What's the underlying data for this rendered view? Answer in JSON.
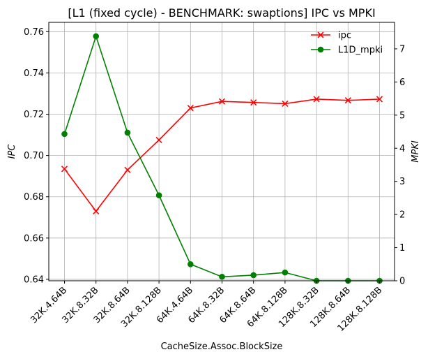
{
  "chart_data": {
    "type": "line",
    "title": "[L1 (fixed cycle) - BENCHMARK: swaptions]  IPC vs MPKI",
    "xlabel": "CacheSize.Assoc.BlockSize",
    "ylabel_left": "IPC",
    "ylabel_right": "MPKI",
    "categories": [
      "32K.4.64B",
      "32K.8.32B",
      "32K.8.64B",
      "32K.8.128B",
      "64K.4.64B",
      "64K.8.32B",
      "64K.8.64B",
      "64K.8.128B",
      "128K.8.32B",
      "128K.8.64B",
      "128K.8.128B"
    ],
    "ylim_left": [
      0.6393,
      0.7645
    ],
    "yticks_left": [
      "0.64",
      "0.66",
      "0.68",
      "0.70",
      "0.72",
      "0.74",
      "0.76"
    ],
    "ylim_right": [
      0,
      7.8
    ],
    "yticks_right": [
      "0",
      "1",
      "2",
      "3",
      "4",
      "5",
      "6",
      "7"
    ],
    "grid": true,
    "legend_position": "top-right",
    "series": [
      {
        "name": "ipc",
        "axis": "left",
        "color": "#ff0000",
        "marker": "x",
        "values": [
          0.6935,
          0.673,
          0.693,
          0.7075,
          0.723,
          0.7262,
          0.7257,
          0.7251,
          0.7273,
          0.7267,
          0.7273
        ]
      },
      {
        "name": "L1D_mpki",
        "axis": "right",
        "color": "#008000",
        "marker": "o",
        "values": [
          4.43,
          7.38,
          4.47,
          2.58,
          0.5,
          0.12,
          0.17,
          0.25,
          0.0,
          0.0,
          0.0
        ]
      }
    ]
  }
}
